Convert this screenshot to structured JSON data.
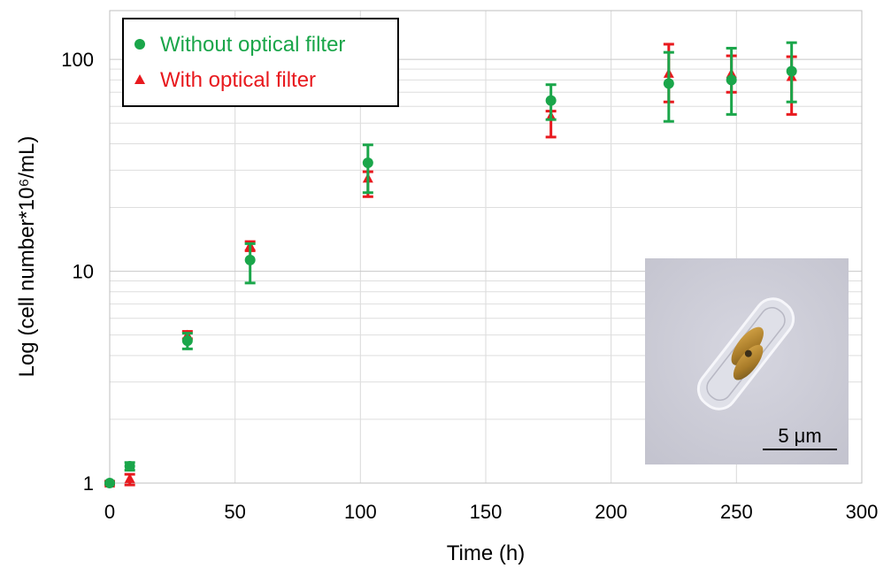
{
  "chart_data": {
    "type": "scatter",
    "xlabel": "Time (h)",
    "ylabel": "Log (cell number*10⁶/mL)",
    "xlim": [
      0,
      300
    ],
    "ylim": [
      1,
      170
    ],
    "yscale": "log",
    "x_ticks": [
      "0",
      "50",
      "100",
      "150",
      "200",
      "250",
      "300"
    ],
    "y_ticks": [
      "1",
      "10",
      "100"
    ],
    "grid": true,
    "legend_position": "top-left",
    "series": [
      {
        "name": "Without optical filter",
        "color": "#1aa64a",
        "marker": "circle",
        "x": [
          0,
          8,
          31,
          56,
          103,
          176,
          223,
          248,
          272
        ],
        "y": [
          1.0,
          1.2,
          4.7,
          11.3,
          32.5,
          64,
          77,
          80,
          88
        ],
        "err_low": [
          1.0,
          1.15,
          4.3,
          8.8,
          23.5,
          52,
          51,
          55,
          63
        ],
        "err_high": [
          1.0,
          1.25,
          5.1,
          13.5,
          39.5,
          76,
          108,
          113,
          120
        ]
      },
      {
        "name": "With optical filter",
        "color": "#e8191e",
        "marker": "triangle",
        "x": [
          0,
          8,
          31,
          56,
          103,
          176,
          223,
          248,
          272
        ],
        "y": [
          1.0,
          1.05,
          5.0,
          13.2,
          27.5,
          54,
          86,
          86,
          83
        ],
        "err_low": [
          0.98,
          0.98,
          4.8,
          12.5,
          22.5,
          43,
          63,
          70,
          55
        ],
        "err_high": [
          1.02,
          1.1,
          5.2,
          13.8,
          29.5,
          57,
          118,
          104,
          103
        ]
      }
    ]
  },
  "inset": {
    "scale_bar_label": "5 μm"
  }
}
